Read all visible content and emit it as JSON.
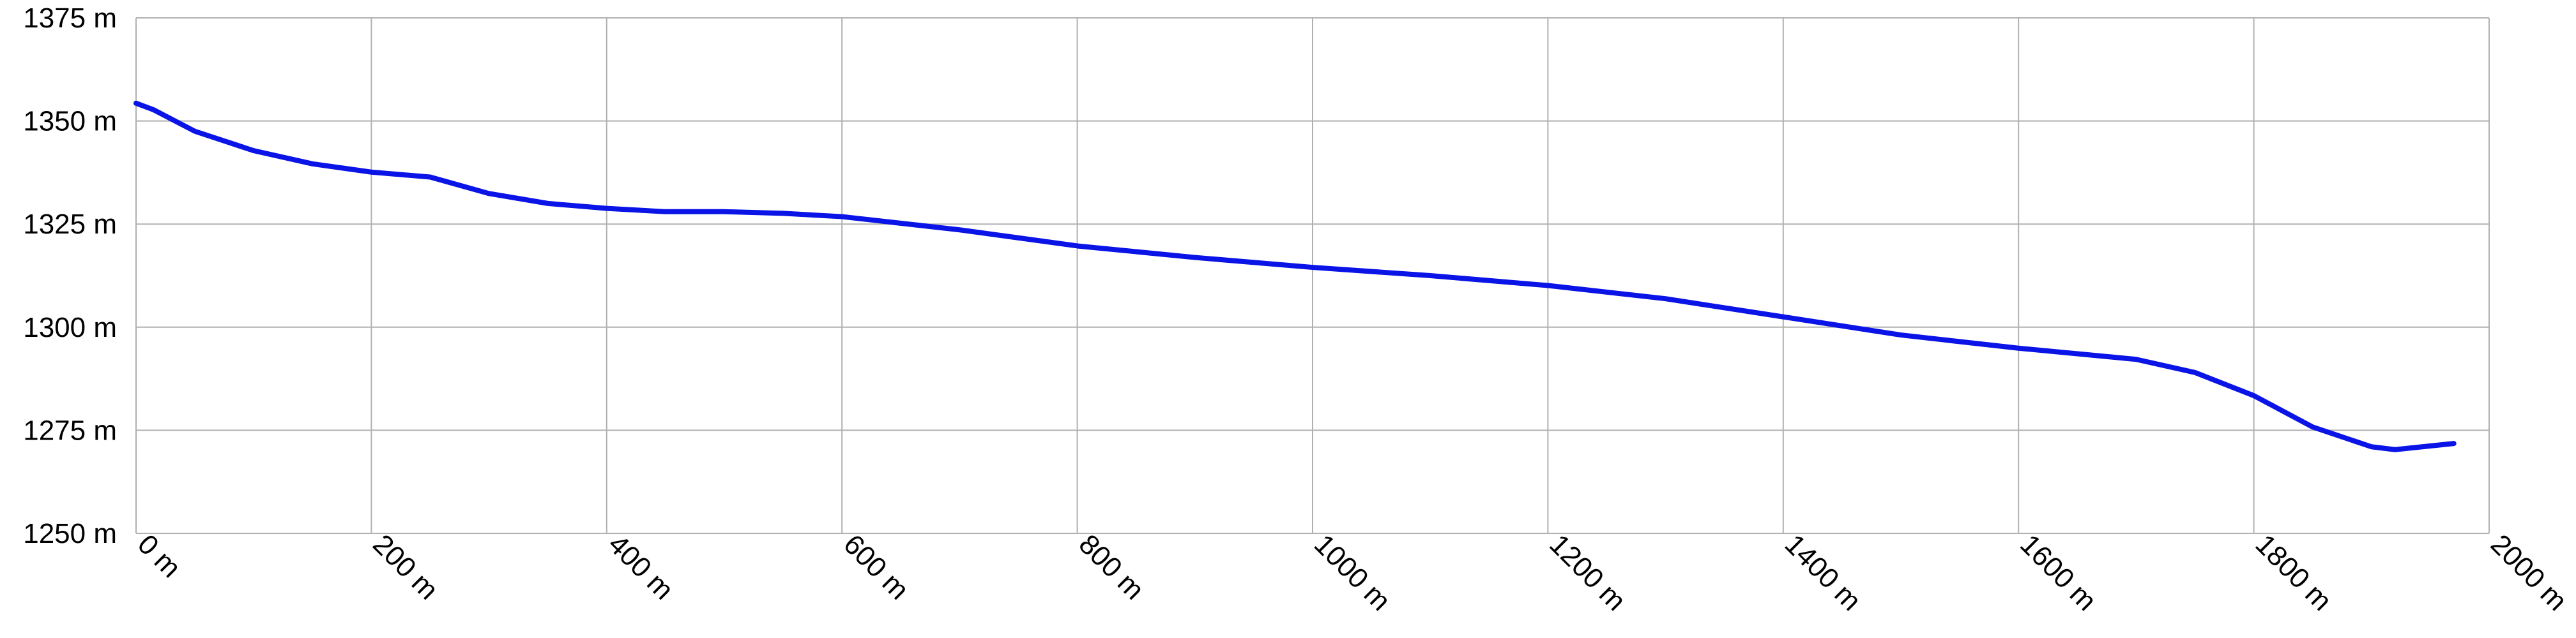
{
  "chart_data": {
    "type": "line",
    "x": [
      0,
      15,
      50,
      100,
      150,
      200,
      250,
      300,
      350,
      400,
      450,
      500,
      550,
      600,
      700,
      800,
      900,
      1000,
      1100,
      1200,
      1300,
      1400,
      1500,
      1600,
      1700,
      1750,
      1800,
      1850,
      1900,
      1920,
      1970
    ],
    "series": [
      {
        "color": "#0a14e6",
        "values": [
          1354.3,
          1352.7,
          1347.5,
          1342.8,
          1339.6,
          1337.6,
          1336.4,
          1332.4,
          1330,
          1328.8,
          1328,
          1328,
          1327.6,
          1326.8,
          1323.6,
          1319.7,
          1316.9,
          1314.5,
          1312.5,
          1310.1,
          1306.9,
          1302.5,
          1298.1,
          1294.9,
          1292.2,
          1289,
          1283.4,
          1275.8,
          1271,
          1270.3,
          1271.8
        ]
      }
    ],
    "xlim": [
      0,
      2000
    ],
    "xticks": [
      {
        "value": 0,
        "label": "0 m"
      },
      {
        "value": 200,
        "label": "200 m"
      },
      {
        "value": 400,
        "label": "400 m"
      },
      {
        "value": 600,
        "label": "600 m"
      },
      {
        "value": 800,
        "label": "800 m"
      },
      {
        "value": 1000,
        "label": "1000 m"
      },
      {
        "value": 1200,
        "label": "1200 m"
      },
      {
        "value": 1400,
        "label": "1400 m"
      },
      {
        "value": 1600,
        "label": "1600 m"
      },
      {
        "value": 1800,
        "label": "1800 m"
      },
      {
        "value": 2000,
        "label": "2000 m"
      }
    ],
    "ylim": [
      1250,
      1375
    ],
    "yticks": [
      {
        "value": 1250,
        "label": "1250 m"
      },
      {
        "value": 1275,
        "label": "1275 m"
      },
      {
        "value": 1300,
        "label": "1300 m"
      },
      {
        "value": 1325,
        "label": "1325 m"
      },
      {
        "value": 1350,
        "label": "1350 m"
      },
      {
        "value": 1375,
        "label": "1375 m"
      }
    ],
    "grid": true
  }
}
